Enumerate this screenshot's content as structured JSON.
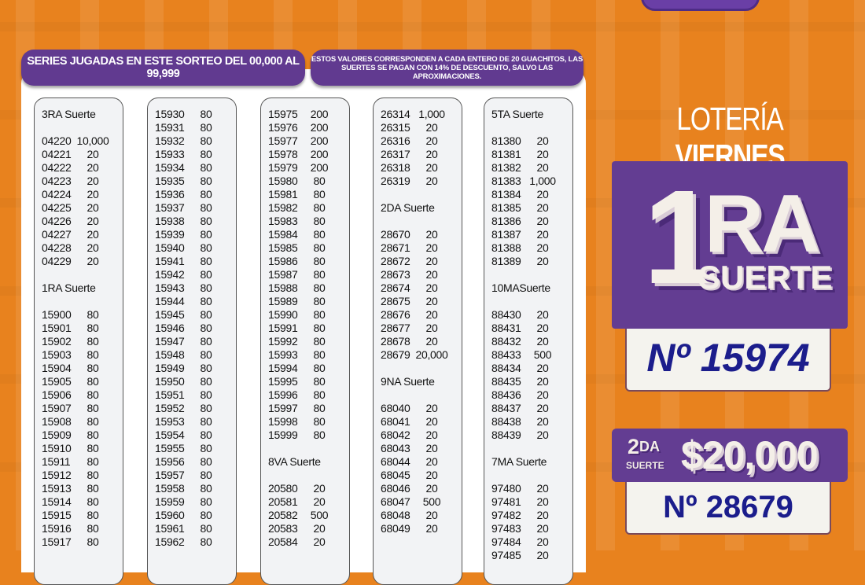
{
  "colors": {
    "background": "#e8821e",
    "purple": "#633d92",
    "navy": "#1b1d8c",
    "cream": "#f4efe8"
  },
  "header": {
    "series_text": "SERIES JUGADAS EN ESTE SORTEO DEL 00,000 AL 99,999",
    "note_line1": "ESTOS VALORES CORRESPONDEN A CADA ENTERO DE 20 GUACHITOS, LAS",
    "note_line2": "SUERTES SE PAGAN CON 14% DE DESCUENTO, SALVO LAS APROXIMACIONES."
  },
  "columns": [
    [
      {
        "heading": "3RA  Suerte"
      },
      [
        "04220",
        "10,000"
      ],
      [
        "04221",
        "20"
      ],
      [
        "04222",
        "20"
      ],
      [
        "04223",
        "20"
      ],
      [
        "04224",
        "20"
      ],
      [
        "04225",
        "20"
      ],
      [
        "04226",
        "20"
      ],
      [
        "04227",
        "20"
      ],
      [
        "04228",
        "20"
      ],
      [
        "04229",
        "20"
      ],
      {
        "heading": "1RA  Suerte"
      },
      [
        "15900",
        "80"
      ],
      [
        "15901",
        "80"
      ],
      [
        "15902",
        "80"
      ],
      [
        "15903",
        "80"
      ],
      [
        "15904",
        "80"
      ],
      [
        "15905",
        "80"
      ],
      [
        "15906",
        "80"
      ],
      [
        "15907",
        "80"
      ],
      [
        "15908",
        "80"
      ],
      [
        "15909",
        "80"
      ],
      [
        "15910",
        "80"
      ],
      [
        "15911",
        "80"
      ],
      [
        "15912",
        "80"
      ],
      [
        "15913",
        "80"
      ],
      [
        "15914",
        "80"
      ],
      [
        "15915",
        "80"
      ],
      [
        "15916",
        "80"
      ],
      [
        "15917",
        "80"
      ]
    ],
    [
      [
        "15930",
        "80"
      ],
      [
        "15931",
        "80"
      ],
      [
        "15932",
        "80"
      ],
      [
        "15933",
        "80"
      ],
      [
        "15934",
        "80"
      ],
      [
        "15935",
        "80"
      ],
      [
        "15936",
        "80"
      ],
      [
        "15937",
        "80"
      ],
      [
        "15938",
        "80"
      ],
      [
        "15939",
        "80"
      ],
      [
        "15940",
        "80"
      ],
      [
        "15941",
        "80"
      ],
      [
        "15942",
        "80"
      ],
      [
        "15943",
        "80"
      ],
      [
        "15944",
        "80"
      ],
      [
        "15945",
        "80"
      ],
      [
        "15946",
        "80"
      ],
      [
        "15947",
        "80"
      ],
      [
        "15948",
        "80"
      ],
      [
        "15949",
        "80"
      ],
      [
        "15950",
        "80"
      ],
      [
        "15951",
        "80"
      ],
      [
        "15952",
        "80"
      ],
      [
        "15953",
        "80"
      ],
      [
        "15954",
        "80"
      ],
      [
        "15955",
        "80"
      ],
      [
        "15956",
        "80"
      ],
      [
        "15957",
        "80"
      ],
      [
        "15958",
        "80"
      ],
      [
        "15959",
        "80"
      ],
      [
        "15960",
        "80"
      ],
      [
        "15961",
        "80"
      ],
      [
        "15962",
        "80"
      ]
    ],
    [
      [
        "15975",
        "200"
      ],
      [
        "15976",
        "200"
      ],
      [
        "15977",
        "200"
      ],
      [
        "15978",
        "200"
      ],
      [
        "15979",
        "200"
      ],
      [
        "15980",
        "80"
      ],
      [
        "15981",
        "80"
      ],
      [
        "15982",
        "80"
      ],
      [
        "15983",
        "80"
      ],
      [
        "15984",
        "80"
      ],
      [
        "15985",
        "80"
      ],
      [
        "15986",
        "80"
      ],
      [
        "15987",
        "80"
      ],
      [
        "15988",
        "80"
      ],
      [
        "15989",
        "80"
      ],
      [
        "15990",
        "80"
      ],
      [
        "15991",
        "80"
      ],
      [
        "15992",
        "80"
      ],
      [
        "15993",
        "80"
      ],
      [
        "15994",
        "80"
      ],
      [
        "15995",
        "80"
      ],
      [
        "15996",
        "80"
      ],
      [
        "15997",
        "80"
      ],
      [
        "15998",
        "80"
      ],
      [
        "15999",
        "80"
      ],
      {
        "heading": "8VA  Suerte"
      },
      [
        "20580",
        "20"
      ],
      [
        "20581",
        "20"
      ],
      [
        "20582",
        "500"
      ],
      [
        "20583",
        "20"
      ],
      [
        "20584",
        "20"
      ]
    ],
    [
      [
        "26314",
        "1,000"
      ],
      [
        "26315",
        "20"
      ],
      [
        "26316",
        "20"
      ],
      [
        "26317",
        "20"
      ],
      [
        "26318",
        "20"
      ],
      [
        "26319",
        "20"
      ],
      {
        "heading": "2DA  Suerte"
      },
      [
        "28670",
        "20"
      ],
      [
        "28671",
        "20"
      ],
      [
        "28672",
        "20"
      ],
      [
        "28673",
        "20"
      ],
      [
        "28674",
        "20"
      ],
      [
        "28675",
        "20"
      ],
      [
        "28676",
        "20"
      ],
      [
        "28677",
        "20"
      ],
      [
        "28678",
        "20"
      ],
      [
        "28679",
        "20,000"
      ],
      {
        "heading": "9NA  Suerte"
      },
      [
        "68040",
        "20"
      ],
      [
        "68041",
        "20"
      ],
      [
        "68042",
        "20"
      ],
      [
        "68043",
        "20"
      ],
      [
        "68044",
        "20"
      ],
      [
        "68045",
        "20"
      ],
      [
        "68046",
        "20"
      ],
      [
        "68047",
        "500"
      ],
      [
        "68048",
        "20"
      ],
      [
        "68049",
        "20"
      ]
    ],
    [
      {
        "heading": "5TA  Suerte"
      },
      [
        "81380",
        "20"
      ],
      [
        "81381",
        "20"
      ],
      [
        "81382",
        "20"
      ],
      [
        "81383",
        "1,000"
      ],
      [
        "81384",
        "20"
      ],
      [
        "81385",
        "20"
      ],
      [
        "81386",
        "20"
      ],
      [
        "81387",
        "20"
      ],
      [
        "81388",
        "20"
      ],
      [
        "81389",
        "20"
      ],
      {
        "heading": "10MASuerte"
      },
      [
        "88430",
        "20"
      ],
      [
        "88431",
        "20"
      ],
      [
        "88432",
        "20"
      ],
      [
        "88433",
        "500"
      ],
      [
        "88434",
        "20"
      ],
      [
        "88435",
        "20"
      ],
      [
        "88436",
        "20"
      ],
      [
        "88437",
        "20"
      ],
      [
        "88438",
        "20"
      ],
      [
        "88439",
        "20"
      ],
      {
        "heading": "7MA  Suerte"
      },
      [
        "97480",
        "20"
      ],
      [
        "97481",
        "20"
      ],
      [
        "97482",
        "20"
      ],
      [
        "97483",
        "20"
      ],
      [
        "97484",
        "20"
      ],
      [
        "97485",
        "20"
      ]
    ]
  ],
  "side": {
    "title_light": "LOTERÍA ",
    "title_bold": "VIERNES",
    "first": {
      "big_number": "1",
      "big_suffix": "RA",
      "label": "SUERTE",
      "number": "Nº 15974"
    },
    "second": {
      "ordinal": "2",
      "ordinal_suffix": "DA",
      "label": "SUERTE",
      "prize": "$20,000",
      "number": "Nº 28679"
    }
  }
}
